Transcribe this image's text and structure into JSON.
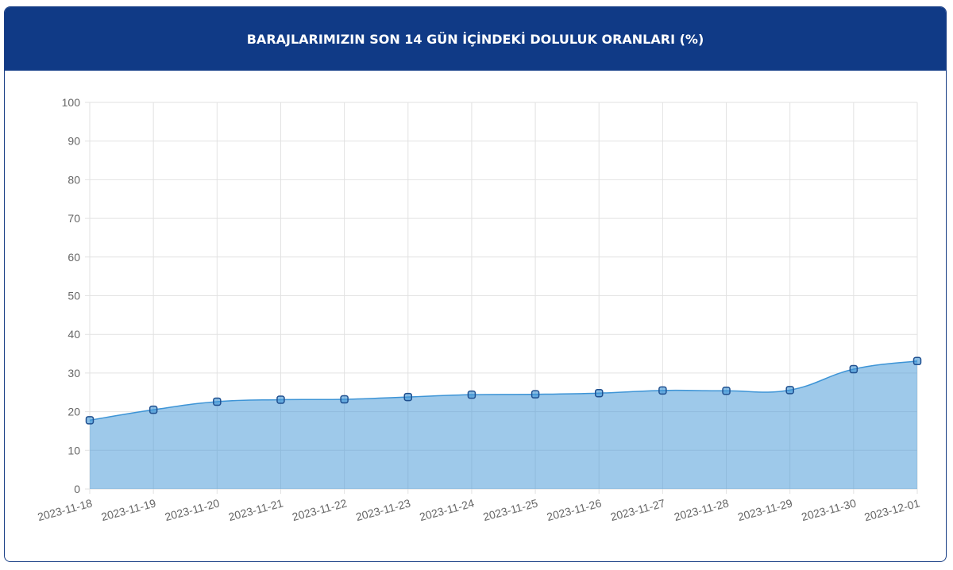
{
  "chart_data": {
    "type": "line",
    "title": "BARAJLARIMIZIN SON 14 GÜN İÇİNDEKİ DOLULUK ORANLARI (%)",
    "x": [
      "2023-11-18",
      "2023-11-19",
      "2023-11-20",
      "2023-11-21",
      "2023-11-22",
      "2023-11-23",
      "2023-11-24",
      "2023-11-25",
      "2023-11-26",
      "2023-11-27",
      "2023-11-28",
      "2023-11-29",
      "2023-11-30",
      "2023-12-01"
    ],
    "series": [
      {
        "color": "#3d94d6",
        "values": [
          17.8,
          20.5,
          22.6,
          23.1,
          23.2,
          23.8,
          24.4,
          24.5,
          24.8,
          25.5,
          25.4,
          25.6,
          31.0,
          33.1
        ]
      }
    ],
    "ylim": [
      0,
      100
    ],
    "yticks": [
      0,
      10,
      20,
      30,
      40,
      50,
      60,
      70,
      80,
      90,
      100
    ],
    "grid": true,
    "area": true
  }
}
